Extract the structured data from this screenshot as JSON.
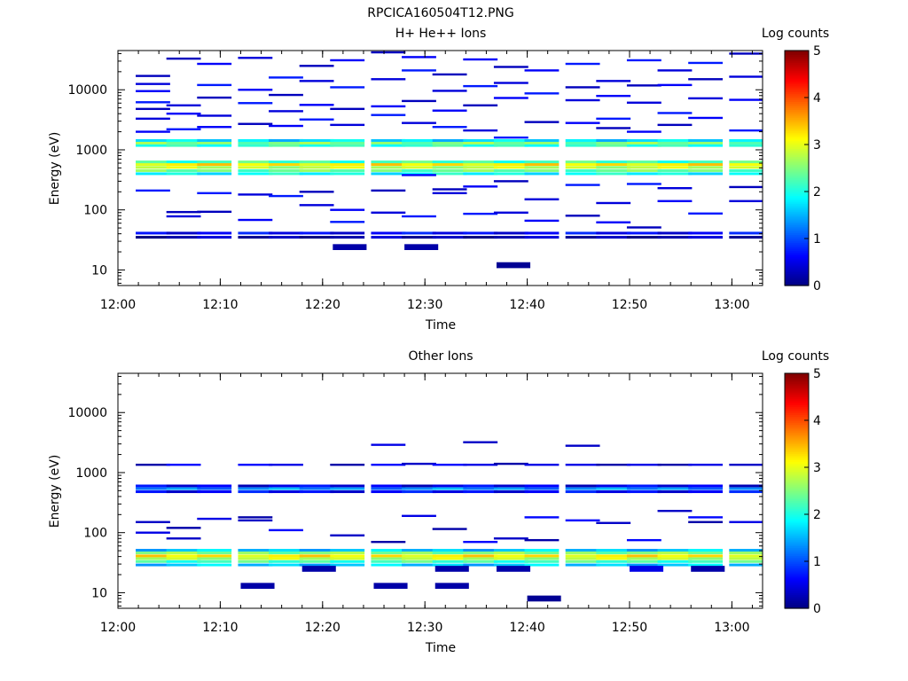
{
  "figure": {
    "title": "RPCICA160504T12.PNG"
  },
  "chart_data": [
    {
      "type": "heatmap",
      "title": "H+ He++ Ions",
      "xlabel": "Time",
      "ylabel": "Energy (eV)",
      "x_range": [
        "12:00",
        "13:03"
      ],
      "y_range": [
        5.5,
        45000
      ],
      "y_scale": "log",
      "x_ticks": [
        "12:00",
        "12:10",
        "12:20",
        "12:30",
        "12:40",
        "12:50",
        "13:00"
      ],
      "y_ticks": [
        "10",
        "100",
        "1000",
        "10000"
      ],
      "colorbar": {
        "label": "Log counts",
        "min": 0,
        "max": 5,
        "ticks": [
          "0",
          "1",
          "2",
          "3",
          "4",
          "5"
        ],
        "colormap": "jet"
      },
      "columns": [
        "12:02",
        "12:05",
        "12:08",
        "12:12",
        "12:15",
        "12:18",
        "12:21",
        "12:25",
        "12:28",
        "12:31",
        "12:34",
        "12:37",
        "12:40",
        "12:44",
        "12:47",
        "12:50",
        "12:53",
        "12:56",
        "13:00"
      ],
      "bands": [
        {
          "energy": 35,
          "level": 0.2
        },
        {
          "energy": 41,
          "level": 0.6
        },
        {
          "energy": 400,
          "level": 1.9
        },
        {
          "energy": 450,
          "level": 2.4
        },
        {
          "energy": 510,
          "level": 2.8
        },
        {
          "energy": 570,
          "level": 3.2
        },
        {
          "energy": 630,
          "level": 2.2
        },
        {
          "energy": 1180,
          "level": 2.1
        },
        {
          "energy": 1300,
          "level": 2.5
        },
        {
          "energy": 1430,
          "level": 1.7
        }
      ],
      "sparse_level": 0.3
    },
    {
      "type": "heatmap",
      "title": "Other Ions",
      "xlabel": "Time",
      "ylabel": "Energy (eV)",
      "x_range": [
        "12:00",
        "13:03"
      ],
      "y_range": [
        5.5,
        45000
      ],
      "y_scale": "log",
      "x_ticks": [
        "12:00",
        "12:10",
        "12:20",
        "12:30",
        "12:40",
        "12:50",
        "13:00"
      ],
      "y_ticks": [
        "10",
        "100",
        "1000",
        "10000"
      ],
      "colorbar": {
        "label": "Log counts",
        "min": 0,
        "max": 5,
        "ticks": [
          "0",
          "1",
          "2",
          "3",
          "4",
          "5"
        ],
        "colormap": "jet"
      },
      "columns": [
        "12:02",
        "12:05",
        "12:08",
        "12:12",
        "12:15",
        "12:18",
        "12:21",
        "12:25",
        "12:28",
        "12:31",
        "12:34",
        "12:37",
        "12:40",
        "12:44",
        "12:47",
        "12:50",
        "12:53",
        "12:56",
        "13:00"
      ],
      "bands": [
        {
          "energy": 29,
          "level": 1.6
        },
        {
          "energy": 33,
          "level": 2.2
        },
        {
          "energy": 37,
          "level": 2.8
        },
        {
          "energy": 41,
          "level": 3.2
        },
        {
          "energy": 46,
          "level": 2.5
        },
        {
          "energy": 51,
          "level": 1.6
        },
        {
          "energy": 480,
          "level": 0.6
        },
        {
          "energy": 540,
          "level": 1.3
        },
        {
          "energy": 600,
          "level": 0.5
        }
      ],
      "sparse_level": 0.2
    }
  ]
}
